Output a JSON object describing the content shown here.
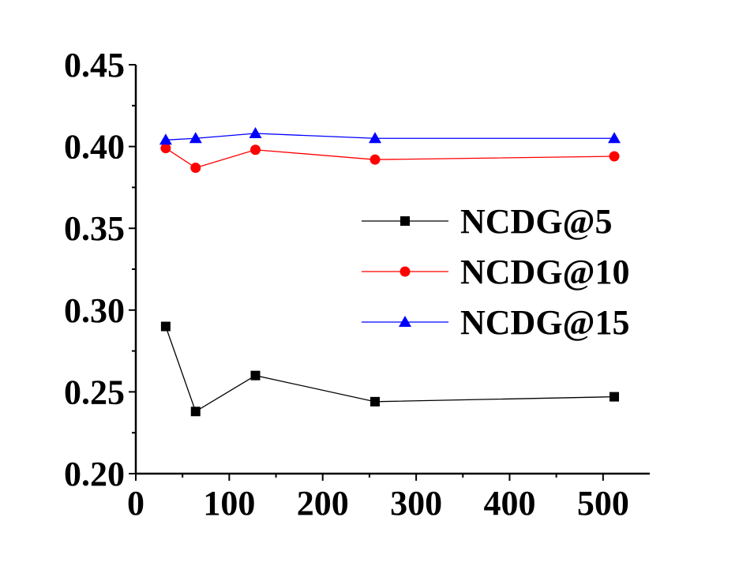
{
  "chart_data": {
    "type": "line",
    "title": "",
    "xlabel": "",
    "ylabel": "",
    "xlim": [
      0,
      550
    ],
    "ylim": [
      0.2,
      0.45
    ],
    "x_ticks": [
      0,
      100,
      200,
      300,
      400,
      500
    ],
    "x_tick_labels": [
      "0",
      "100",
      "200",
      "300",
      "400",
      "500"
    ],
    "y_ticks": [
      0.2,
      0.25,
      0.3,
      0.35,
      0.4,
      0.45
    ],
    "y_tick_labels": [
      "0.20",
      "0.25",
      "0.30",
      "0.35",
      "0.40",
      "0.45"
    ],
    "grid": false,
    "legend_position": "center-right",
    "series": [
      {
        "name": "NCDG@5",
        "color": "#000000",
        "marker": "square",
        "x": [
          32,
          64,
          128,
          256,
          512
        ],
        "y": [
          0.29,
          0.238,
          0.26,
          0.244,
          0.247
        ]
      },
      {
        "name": "NCDG@10",
        "color": "#ff0000",
        "marker": "circle",
        "x": [
          32,
          64,
          128,
          256,
          512
        ],
        "y": [
          0.399,
          0.387,
          0.398,
          0.392,
          0.394
        ]
      },
      {
        "name": "NCDG@15",
        "color": "#0000ff",
        "marker": "triangle",
        "x": [
          32,
          64,
          128,
          256,
          512
        ],
        "y": [
          0.404,
          0.405,
          0.408,
          0.405,
          0.405
        ]
      }
    ]
  }
}
